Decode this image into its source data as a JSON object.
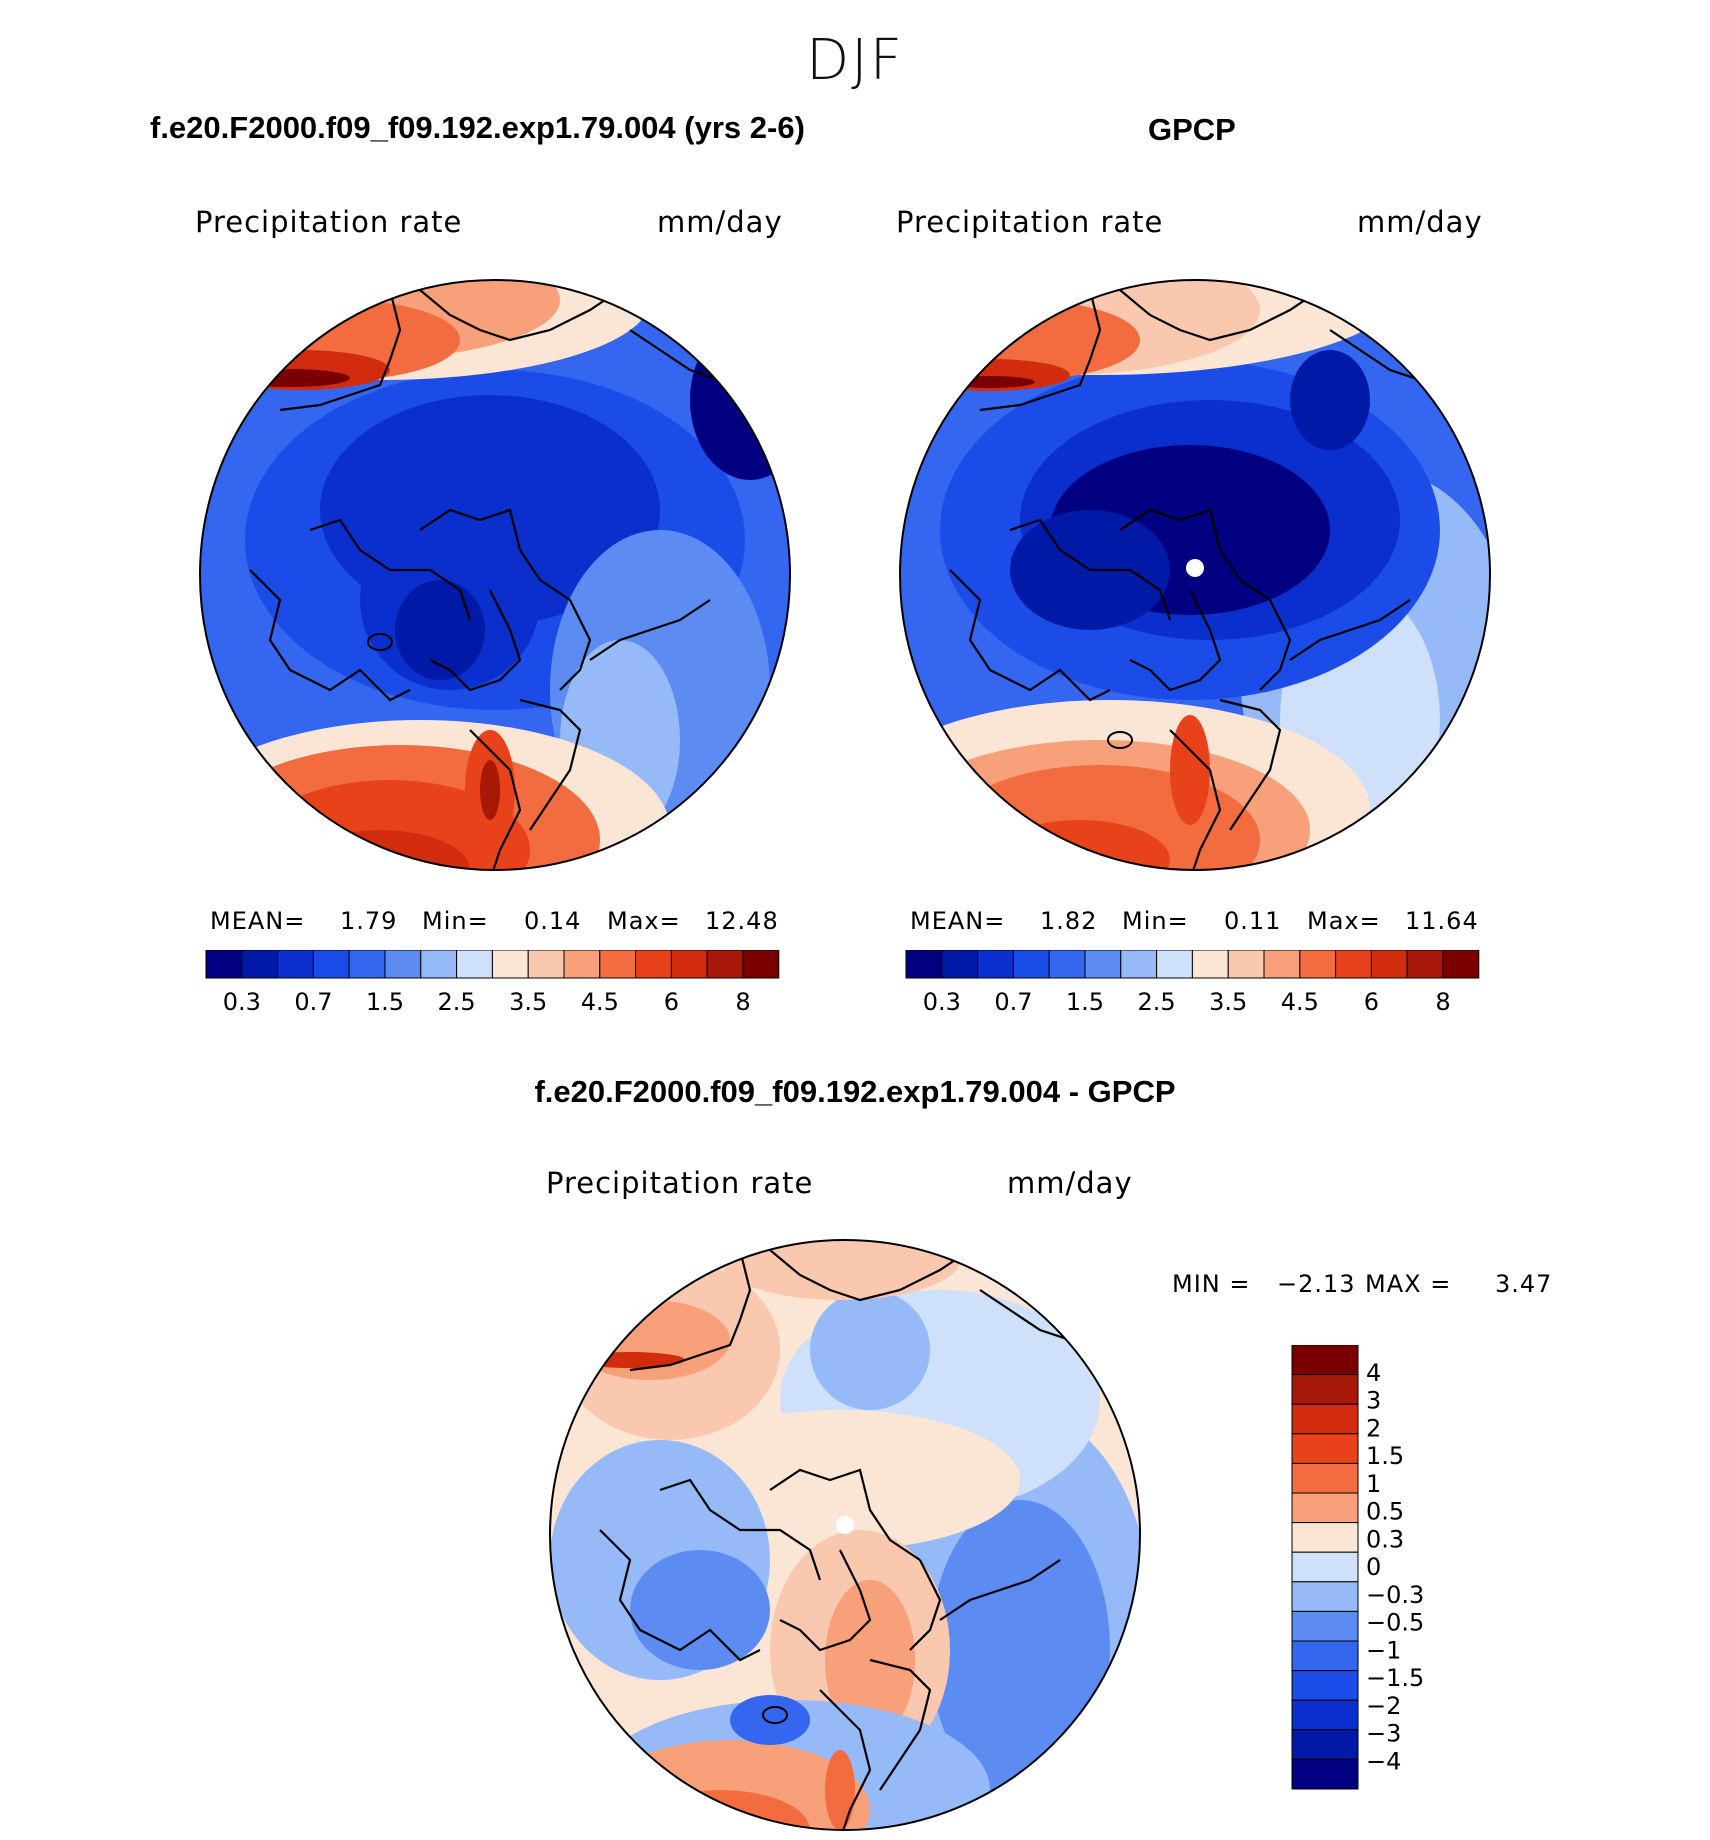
{
  "title": "DJF",
  "colors": {
    "levels_abs": [
      "#000080",
      "#0019a6",
      "#0a2fcc",
      "#1c4ce8",
      "#3466f0",
      "#5c8cf2",
      "#96b9f7",
      "#cfe0fb",
      "#fbe6d6",
      "#f9c8ae",
      "#f7a07a",
      "#f26c40",
      "#e8421a",
      "#d12c0d",
      "#a81808",
      "#7a0000"
    ],
    "levels_diff": [
      "#7a0000",
      "#a81808",
      "#d12c0d",
      "#e8421a",
      "#f26c40",
      "#f7a07a",
      "#fbe6d6",
      "#cfe0fb",
      "#96b9f7",
      "#5c8cf2",
      "#3466f0",
      "#1c4ce8",
      "#0a2fcc",
      "#0019a6",
      "#000080"
    ]
  },
  "panels": [
    {
      "title": "f.e20.F2000.f09_f09.192.exp1.79.004 (yrs 2-6)",
      "variable": "Precipitation  rate",
      "units": "mm/day",
      "mean_label": "MEAN=",
      "mean": "1.79",
      "min_label": "Min=",
      "min": "0.14",
      "max_label": "Max=",
      "max": "12.48"
    },
    {
      "title": "GPCP",
      "variable": "Precipitation  rate",
      "units": "mm/day",
      "mean_label": "MEAN=",
      "mean": "1.82",
      "min_label": "Min=",
      "min": "0.11",
      "max_label": "Max=",
      "max": "11.64"
    },
    {
      "title": "f.e20.F2000.f09_f09.192.exp1.79.004 - GPCP",
      "variable": "Precipitation  rate",
      "units": "mm/day",
      "min_label": "MIN =",
      "min": "−2.13",
      "max_label": "MAX =",
      "max": "3.47"
    }
  ],
  "colorbar_abs": {
    "tick_labels": [
      "0.3",
      "0.7",
      "1.5",
      "2.5",
      "3.5",
      "4.5",
      "6",
      "8"
    ]
  },
  "colorbar_diff": {
    "tick_labels": [
      "4",
      "3",
      "2",
      "1.5",
      "1",
      "0.5",
      "0.3",
      "0",
      "−0.3",
      "−0.5",
      "−1",
      "−1.5",
      "−2",
      "−3",
      "−4"
    ]
  }
}
